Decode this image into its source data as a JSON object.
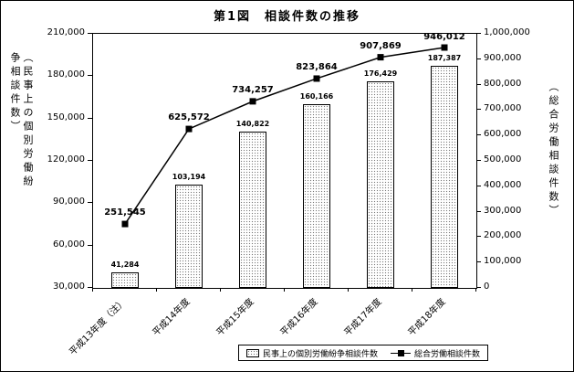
{
  "title": "第1図　相談件数の推移",
  "left_axis": {
    "label": "（民事上の個別労働紛争相談件数）",
    "ticks": [
      "210,000",
      "180,000",
      "150,000",
      "120,000",
      "90,000",
      "60,000",
      "30,000"
    ]
  },
  "right_axis": {
    "label": "（総合労働相談件数）",
    "ticks": [
      "1,000,000",
      "900,000",
      "800,000",
      "700,000",
      "600,000",
      "500,000",
      "400,000",
      "300,000",
      "200,000",
      "100,000",
      "0"
    ]
  },
  "chart_data": {
    "type": "combo-bar-line",
    "categories": [
      "平成13年度（注）",
      "平成14年度",
      "平成15年度",
      "平成16年度",
      "平成17年度",
      "平成18年度"
    ],
    "left_ylim": [
      30000,
      210000
    ],
    "right_ylim": [
      0,
      1000000
    ],
    "grid": false,
    "legend_position": "bottom",
    "series": [
      {
        "name": "民事上の個別労働紛争相談件数",
        "type": "bar",
        "axis": "left",
        "values": [
          41284,
          103194,
          140822,
          160166,
          176429,
          187387
        ],
        "labels": [
          "41,284",
          "103,194",
          "140,822",
          "160,166",
          "176,429",
          "187,387"
        ]
      },
      {
        "name": "総合労働相談件数",
        "type": "line",
        "axis": "right",
        "values": [
          251545,
          625572,
          734257,
          823864,
          907869,
          946012
        ],
        "labels": [
          "251,545",
          "625,572",
          "734,257",
          "823,864",
          "907,869",
          "946,012"
        ]
      }
    ]
  },
  "colors": {
    "ink": "#000000",
    "bar_fill": "#ffffff",
    "bar_dot": "#777777"
  }
}
